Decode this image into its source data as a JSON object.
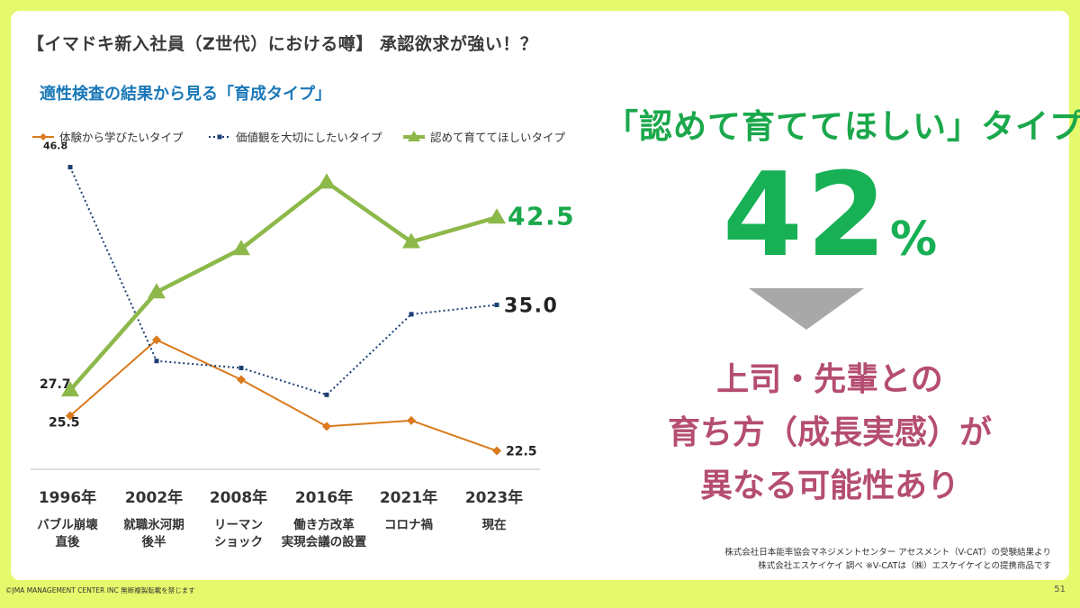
{
  "slide": {
    "title": "【イマドキ新入社員（Z世代）における噂】 承認欲求が強い！？",
    "subtitle": "適性検査の結果から見る「育成タイプ」",
    "headline": "「認めて育ててほしい」タイプ",
    "big_number": "42",
    "big_number_unit": "%",
    "conclusion_lines": [
      "上司・先輩との",
      "育ち方（成長実感）が",
      "異なる可能性あり"
    ],
    "source_lines": [
      "株式会社日本能率協会マネジメントセンター アセスメント（V-CAT）の受験結果より",
      "株式会社エスケイケイ 調べ ※V-CATは（㈱）エスケイケイとの提携商品です"
    ],
    "copyright": "©JMA MANAGEMENT CENTER INC 無断複製転載を禁じます",
    "page_number": "51"
  },
  "colors": {
    "background": "#e6f86b",
    "orange": "#d97a1c",
    "navy": "#1c3f74",
    "green_line": "#8db84a",
    "green_text": "#1aa84b",
    "pink": "#b54d72",
    "subtitle_blue": "#1a78b8"
  },
  "chart_data": {
    "type": "line",
    "categories": [
      "1996年",
      "2002年",
      "2008年",
      "2016年",
      "2021年",
      "2023年"
    ],
    "category_sublabels": [
      [
        "バブル崩壊",
        "直後"
      ],
      [
        "就職氷河期",
        "後半"
      ],
      [
        "リーマン",
        "ショック"
      ],
      [
        "働き方改革",
        "実現会議の設置"
      ],
      [
        "コロナ禍"
      ],
      [
        "現在"
      ]
    ],
    "series": [
      {
        "name": "体験から学びたいタイプ",
        "color": "#d97a1c",
        "marker": "diamond",
        "style": "solid",
        "values": [
          25.5,
          32.0,
          28.6,
          24.6,
          25.1,
          22.5
        ],
        "labels": [
          "25.5",
          null,
          null,
          null,
          null,
          "22.5"
        ]
      },
      {
        "name": "価値観を大切にしたいタイプ",
        "color": "#1c3f74",
        "marker": "square",
        "style": "dotted",
        "values": [
          46.8,
          30.2,
          29.6,
          27.3,
          34.2,
          35.0
        ],
        "labels": [
          "46.8",
          null,
          null,
          null,
          null,
          "35.0"
        ]
      },
      {
        "name": "認めて育ててほしいタイプ",
        "color": "#8db84a",
        "marker": "triangle",
        "style": "solid",
        "values": [
          27.7,
          36.1,
          39.8,
          45.5,
          40.4,
          42.5
        ],
        "labels": [
          "27.7",
          null,
          null,
          null,
          null,
          "42.5"
        ]
      }
    ],
    "ylim": [
      21,
      48
    ],
    "grid": false,
    "legend_position": "top-left"
  }
}
